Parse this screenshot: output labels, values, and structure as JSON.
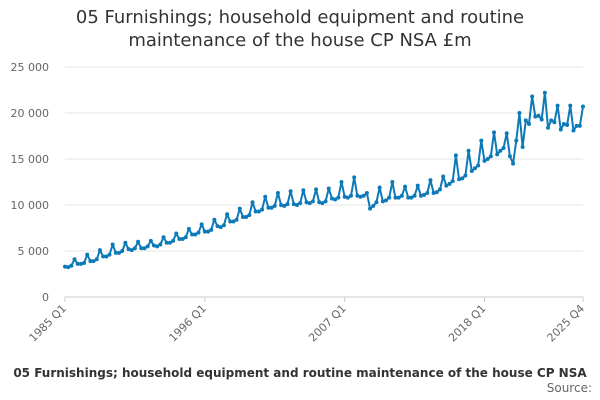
{
  "chart_data": {
    "type": "line",
    "title_lines": [
      "05 Furnishings; household equipment and routine",
      "maintenance of the house CP NSA £m"
    ],
    "legend_label": "05 Furnishings; household equipment and routine maintenance of the house CP NSA",
    "source_label": "Source:",
    "series_color": "#0d7ab8",
    "ylim": [
      0,
      25000
    ],
    "y_ticks": [
      0,
      5000,
      10000,
      15000,
      20000,
      25000
    ],
    "y_tick_labels": [
      "0",
      "5 000",
      "10 000",
      "15 000",
      "20 000",
      "25 000"
    ],
    "x_ticks": [
      "1985 Q1",
      "1996 Q1",
      "2007 Q1",
      "2018 Q1",
      "2025 Q4"
    ],
    "x": [
      "1985 Q1",
      "1985 Q2",
      "1985 Q3",
      "1985 Q4",
      "1986 Q1",
      "1986 Q2",
      "1986 Q3",
      "1986 Q4",
      "1987 Q1",
      "1987 Q2",
      "1987 Q3",
      "1987 Q4",
      "1988 Q1",
      "1988 Q2",
      "1988 Q3",
      "1988 Q4",
      "1989 Q1",
      "1989 Q2",
      "1989 Q3",
      "1989 Q4",
      "1990 Q1",
      "1990 Q2",
      "1990 Q3",
      "1990 Q4",
      "1991 Q1",
      "1991 Q2",
      "1991 Q3",
      "1991 Q4",
      "1992 Q1",
      "1992 Q2",
      "1992 Q3",
      "1992 Q4",
      "1993 Q1",
      "1993 Q2",
      "1993 Q3",
      "1993 Q4",
      "1994 Q1",
      "1994 Q2",
      "1994 Q3",
      "1994 Q4",
      "1995 Q1",
      "1995 Q2",
      "1995 Q3",
      "1995 Q4",
      "1996 Q1",
      "1996 Q2",
      "1996 Q3",
      "1996 Q4",
      "1997 Q1",
      "1997 Q2",
      "1997 Q3",
      "1997 Q4",
      "1998 Q1",
      "1998 Q2",
      "1998 Q3",
      "1998 Q4",
      "1999 Q1",
      "1999 Q2",
      "1999 Q3",
      "1999 Q4",
      "2000 Q1",
      "2000 Q2",
      "2000 Q3",
      "2000 Q4",
      "2001 Q1",
      "2001 Q2",
      "2001 Q3",
      "2001 Q4",
      "2002 Q1",
      "2002 Q2",
      "2002 Q3",
      "2002 Q4",
      "2003 Q1",
      "2003 Q2",
      "2003 Q3",
      "2003 Q4",
      "2004 Q1",
      "2004 Q2",
      "2004 Q3",
      "2004 Q4",
      "2005 Q1",
      "2005 Q2",
      "2005 Q3",
      "2005 Q4",
      "2006 Q1",
      "2006 Q2",
      "2006 Q3",
      "2006 Q4",
      "2007 Q1",
      "2007 Q2",
      "2007 Q3",
      "2007 Q4",
      "2008 Q1",
      "2008 Q2",
      "2008 Q3",
      "2008 Q4",
      "2009 Q1",
      "2009 Q2",
      "2009 Q3",
      "2009 Q4",
      "2010 Q1",
      "2010 Q2",
      "2010 Q3",
      "2010 Q4",
      "2011 Q1",
      "2011 Q2",
      "2011 Q3",
      "2011 Q4",
      "2012 Q1",
      "2012 Q2",
      "2012 Q3",
      "2012 Q4",
      "2013 Q1",
      "2013 Q2",
      "2013 Q3",
      "2013 Q4",
      "2014 Q1",
      "2014 Q2",
      "2014 Q3",
      "2014 Q4",
      "2015 Q1",
      "2015 Q2",
      "2015 Q3",
      "2015 Q4",
      "2016 Q1",
      "2016 Q2",
      "2016 Q3",
      "2016 Q4",
      "2017 Q1",
      "2017 Q2",
      "2017 Q3",
      "2017 Q4",
      "2018 Q1",
      "2018 Q2",
      "2018 Q3",
      "2018 Q4",
      "2019 Q1",
      "2019 Q2",
      "2019 Q3",
      "2019 Q4",
      "2020 Q1",
      "2020 Q2",
      "2020 Q3",
      "2020 Q4",
      "2021 Q1",
      "2021 Q2",
      "2021 Q3",
      "2021 Q4",
      "2022 Q1",
      "2022 Q2",
      "2022 Q3",
      "2022 Q4",
      "2023 Q1",
      "2023 Q2",
      "2023 Q3",
      "2023 Q4",
      "2024 Q1",
      "2024 Q2",
      "2024 Q3",
      "2024 Q4",
      "2025 Q1",
      "2025 Q2",
      "2025 Q3",
      "2025 Q4"
    ],
    "values": [
      3300,
      3250,
      3400,
      4100,
      3600,
      3600,
      3700,
      4600,
      3900,
      3900,
      4100,
      5100,
      4400,
      4400,
      4600,
      5700,
      4800,
      4800,
      5000,
      5900,
      5200,
      5100,
      5300,
      6000,
      5300,
      5300,
      5500,
      6100,
      5600,
      5500,
      5700,
      6500,
      5900,
      5900,
      6100,
      6900,
      6300,
      6300,
      6500,
      7400,
      6800,
      6800,
      7000,
      7900,
      7100,
      7100,
      7300,
      8400,
      7700,
      7600,
      7800,
      9000,
      8200,
      8200,
      8400,
      9600,
      8700,
      8700,
      8900,
      10300,
      9300,
      9300,
      9500,
      10900,
      9700,
      9700,
      9900,
      11300,
      10000,
      9900,
      10100,
      11500,
      10100,
      10000,
      10200,
      11600,
      10300,
      10200,
      10400,
      11700,
      10300,
      10200,
      10400,
      11800,
      10700,
      10600,
      10800,
      12500,
      10900,
      10800,
      11000,
      13000,
      11000,
      10900,
      11000,
      11300,
      9600,
      9900,
      10300,
      11900,
      10400,
      10500,
      10800,
      12500,
      10800,
      10800,
      11000,
      12000,
      10800,
      10800,
      11000,
      12100,
      11000,
      11100,
      11300,
      12700,
      11300,
      11400,
      11700,
      13100,
      12100,
      12300,
      12600,
      15400,
      12800,
      12900,
      13200,
      15900,
      13700,
      14000,
      14300,
      17000,
      14800,
      15000,
      15300,
      17900,
      15500,
      15900,
      16200,
      17800,
      15300,
      14500,
      17000,
      20000,
      16300,
      19200,
      18800,
      21800,
      19600,
      19700,
      19300,
      22200,
      18400,
      19200,
      19000,
      20800,
      18200,
      18800,
      18700,
      20800,
      18100,
      18600,
      18600,
      20700
    ]
  }
}
